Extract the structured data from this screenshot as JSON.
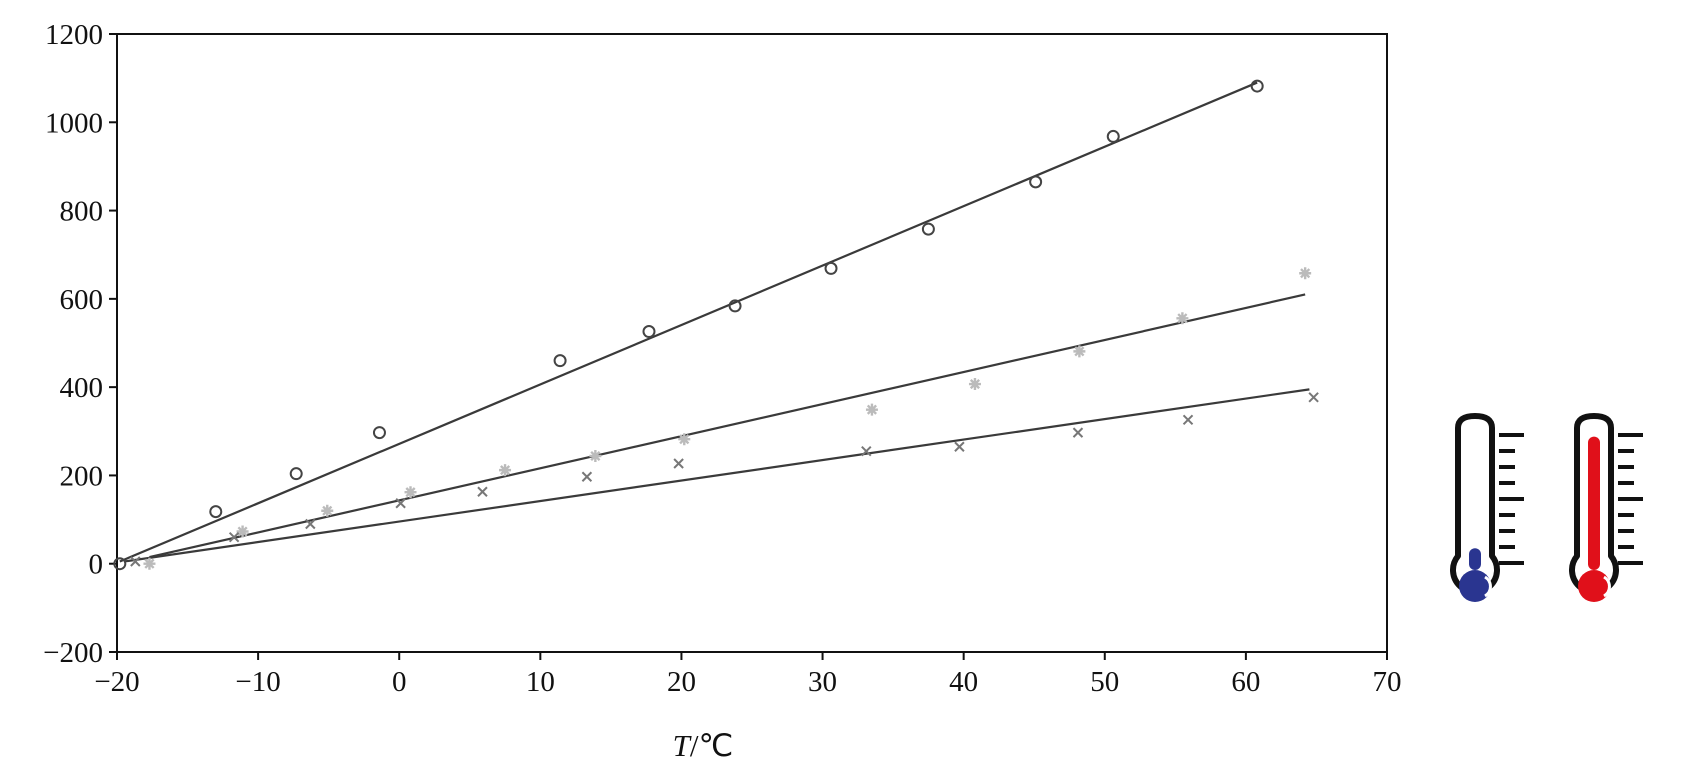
{
  "chart_data": {
    "type": "scatter",
    "xlabel_italic": "T",
    "xlabel_unit": "/℃",
    "ylabel": "",
    "xlim": [
      -20,
      70
    ],
    "ylim": [
      -200,
      1200
    ],
    "x_ticks": [
      -20,
      -10,
      0,
      10,
      20,
      30,
      40,
      50,
      60,
      70
    ],
    "y_ticks": [
      -200,
      0,
      200,
      400,
      600,
      800,
      1000,
      1200
    ],
    "x_tick_labels": [
      "−20",
      "−10",
      "0",
      "10",
      "20",
      "30",
      "40",
      "50",
      "60",
      "70"
    ],
    "y_tick_labels": [
      "−200",
      "0",
      "200",
      "400",
      "600",
      "800",
      "1000",
      "1200"
    ],
    "grid": false,
    "series": [
      {
        "marker": "circle",
        "color": "#444444",
        "points": [
          [
            -19.8,
            0
          ],
          [
            -13,
            118
          ],
          [
            -7.3,
            204
          ],
          [
            -1.4,
            297
          ],
          [
            11.4,
            460
          ],
          [
            17.7,
            526
          ],
          [
            23.8,
            584
          ],
          [
            30.6,
            669
          ],
          [
            37.5,
            758
          ],
          [
            45.1,
            865
          ],
          [
            50.6,
            968
          ],
          [
            60.8,
            1082
          ]
        ],
        "fit": [
          [
            -19.8,
            5
          ],
          [
            60.8,
            1090
          ]
        ]
      },
      {
        "marker": "asterisk",
        "color": "#bbbbbb",
        "points": [
          [
            -17.7,
            0
          ],
          [
            -11.1,
            73
          ],
          [
            -5.1,
            120
          ],
          [
            0.8,
            162
          ],
          [
            7.5,
            212
          ],
          [
            13.9,
            244
          ],
          [
            20.2,
            282
          ],
          [
            33.5,
            349
          ],
          [
            40.8,
            407
          ],
          [
            48.2,
            481
          ],
          [
            55.5,
            556
          ],
          [
            64.2,
            658
          ]
        ],
        "fit": [
          [
            -17.7,
            15
          ],
          [
            64.2,
            610
          ]
        ]
      },
      {
        "marker": "x",
        "color": "#777777",
        "points": [
          [
            -18.7,
            5
          ],
          [
            -11.7,
            60
          ],
          [
            -6.3,
            90
          ],
          [
            0.1,
            137
          ],
          [
            5.9,
            163
          ],
          [
            13.3,
            197
          ],
          [
            19.8,
            227
          ],
          [
            33.1,
            255
          ],
          [
            39.7,
            265
          ],
          [
            48.1,
            297
          ],
          [
            55.9,
            326
          ],
          [
            64.8,
            377
          ]
        ],
        "fit": [
          [
            -19.5,
            5
          ],
          [
            64.5,
            395
          ]
        ]
      }
    ]
  },
  "thermometers": {
    "cold": {
      "fill_color": "#2a3590",
      "level": 0.15,
      "icon": "thermometer-cold-icon"
    },
    "hot": {
      "fill_color": "#e0101a",
      "level": 0.92,
      "icon": "thermometer-hot-icon"
    }
  }
}
